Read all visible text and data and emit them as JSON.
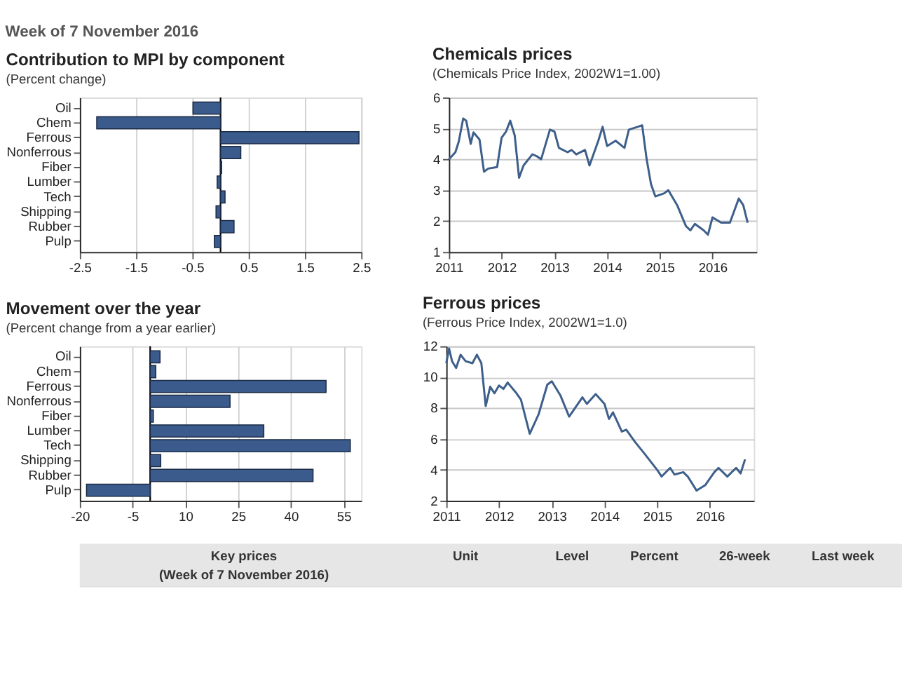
{
  "chart_data": [
    {
      "type": "bar",
      "orientation": "horizontal",
      "title": "Contribution to MPI by component",
      "subtitle": "(Percent change)",
      "categories": [
        "Oil",
        "Chem",
        "Ferrous",
        "Nonferrous",
        "Fiber",
        "Lumber",
        "Tech",
        "Shipping",
        "Rubber",
        "Pulp"
      ],
      "values": [
        -0.49,
        -2.2,
        2.46,
        0.36,
        0.02,
        -0.06,
        0.08,
        -0.08,
        0.24,
        -0.11
      ],
      "color": "#3b5b8c",
      "xlim": [
        -2.5,
        2.5
      ],
      "xticks": [
        -2.5,
        -1.5,
        -0.5,
        0.5,
        1.5,
        2.5
      ],
      "grid": "x",
      "ref_lines": [
        {
          "axis": "x",
          "value": 0,
          "color": "#000000"
        }
      ]
    },
    {
      "type": "line",
      "title": "Chemicals prices",
      "subtitle": "(Chemicals Price Index, 2002W1=1.00)",
      "x": [
        "2011-01",
        "2011-02-15",
        "2011-03-10",
        "2011-04-10",
        "2011-05-01",
        "2011-06-01",
        "2011-06-20",
        "2011-08-01",
        "2011-09-01",
        "2011-10-01",
        "2011-12-01",
        "2012-01-01",
        "2012-02-01",
        "2012-03-01",
        "2012-04-01",
        "2012-05-01",
        "2012-06-01",
        "2012-08-01",
        "2012-09-01",
        "2012-10-01",
        "2012-12-01",
        "2013-01-01",
        "2013-02-01",
        "2013-04-01",
        "2013-05-01",
        "2013-06-01",
        "2013-08-01",
        "2013-09-01",
        "2013-11-01",
        "2013-12-01",
        "2014-01-01",
        "2014-03-01",
        "2014-05-01",
        "2014-06-01",
        "2014-08-01",
        "2014-09-01",
        "2014-10-01",
        "2014-11-01",
        "2014-12-01",
        "2015-02-01",
        "2015-03-01",
        "2015-05-01",
        "2015-07-01",
        "2015-08-01",
        "2015-09-01",
        "2015-11-01",
        "2015-12-01",
        "2016-01-01",
        "2016-03-01",
        "2016-05-01",
        "2016-07-01",
        "2016-08-01",
        "2016-09-01"
      ],
      "values": [
        4.0,
        4.23,
        4.57,
        5.32,
        5.25,
        4.5,
        4.87,
        4.64,
        3.6,
        3.7,
        3.75,
        4.7,
        4.9,
        5.25,
        4.77,
        3.4,
        3.8,
        4.16,
        4.1,
        4.0,
        4.96,
        4.9,
        4.37,
        4.23,
        4.3,
        4.16,
        4.3,
        3.8,
        4.6,
        5.05,
        4.43,
        4.6,
        4.37,
        4.96,
        5.05,
        5.1,
        4.03,
        3.2,
        2.8,
        2.9,
        3.0,
        2.52,
        1.84,
        1.7,
        1.91,
        1.7,
        1.56,
        2.12,
        1.95,
        1.95,
        2.73,
        2.52,
        1.95
      ],
      "color": "#3d5f8a",
      "xlim": [
        "2011-01",
        "2016-11"
      ],
      "xticks": [
        {
          "value": "2011",
          "label": "2011"
        },
        {
          "value": "2012",
          "label": "2012"
        },
        {
          "value": "2013",
          "label": "2013"
        },
        {
          "value": "2014",
          "label": "2014"
        },
        {
          "value": "2015",
          "label": "2015"
        },
        {
          "value": "2016",
          "label": "2016"
        }
      ],
      "ylim": [
        1,
        6
      ],
      "yticks": [
        1,
        2,
        3,
        4,
        5,
        6
      ],
      "grid": "y"
    },
    {
      "type": "bar",
      "orientation": "horizontal",
      "title": "Movement over the year",
      "subtitle": "(Percent change from a year earlier)",
      "categories": [
        "Oil",
        "Chem",
        "Ferrous",
        "Nonferrous",
        "Fiber",
        "Lumber",
        "Tech",
        "Shipping",
        "Rubber",
        "Pulp"
      ],
      "values": [
        2.8,
        1.6,
        50,
        22.7,
        0.9,
        32.3,
        56.9,
        3.0,
        46.3,
        -18.1
      ],
      "color": "#3b5b8c",
      "xlim": [
        -20,
        60
      ],
      "xticks": [
        -20,
        -5,
        10,
        25,
        40,
        55
      ],
      "grid": "x",
      "ref_lines": [
        {
          "axis": "x",
          "value": 0,
          "color": "#000000"
        }
      ]
    },
    {
      "type": "line",
      "title": "Ferrous prices",
      "subtitle": "(Ferrous Price Index, 2002W1=1.0)",
      "x": [
        "2011-01-01",
        "2011-01-20",
        "2011-02-10",
        "2011-03-10",
        "2011-04-10",
        "2011-05-15",
        "2011-07-01",
        "2011-08-01",
        "2011-09-01",
        "2011-10-01",
        "2011-11-01",
        "2011-12-01",
        "2012-01-01",
        "2012-02-01",
        "2012-03-01",
        "2012-05-01",
        "2012-06-01",
        "2012-08-01",
        "2012-10-01",
        "2012-12-01",
        "2013-01-01",
        "2013-03-01",
        "2013-05-01",
        "2013-08-01",
        "2013-09-01",
        "2013-11-01",
        "2014-01-01",
        "2014-02-01",
        "2014-03-01",
        "2014-05-01",
        "2014-06-01",
        "2014-08-01",
        "2014-10-01",
        "2015-01-01",
        "2015-02-01",
        "2015-04-01",
        "2015-05-01",
        "2015-07-01",
        "2015-08-01",
        "2015-10-01",
        "2015-12-01",
        "2016-02-01",
        "2016-03-01",
        "2016-05-01",
        "2016-07-01",
        "2016-08-01",
        "2016-09-01"
      ],
      "values": [
        10.9,
        11.86,
        11.03,
        10.6,
        11.45,
        11.03,
        10.9,
        11.45,
        10.9,
        8.13,
        9.38,
        8.96,
        9.46,
        9.24,
        9.65,
        8.96,
        8.55,
        6.34,
        7.58,
        9.52,
        9.73,
        8.83,
        7.45,
        8.7,
        8.27,
        8.9,
        8.27,
        7.3,
        7.72,
        6.48,
        6.6,
        5.8,
        5.1,
        4.0,
        3.57,
        4.13,
        3.7,
        3.85,
        3.57,
        2.66,
        3.02,
        3.85,
        4.13,
        3.57,
        4.13,
        3.77,
        4.68
      ],
      "color": "#3d5f8a",
      "xlim": [
        "2011-01",
        "2016-11"
      ],
      "xticks": [
        {
          "value": "2011",
          "label": "2011"
        },
        {
          "value": "2012",
          "label": "2012"
        },
        {
          "value": "2013",
          "label": "2013"
        },
        {
          "value": "2014",
          "label": "2014"
        },
        {
          "value": "2015",
          "label": "2015"
        },
        {
          "value": "2016",
          "label": "2016"
        }
      ],
      "ylim": [
        2,
        12
      ],
      "yticks": [
        2,
        4,
        6,
        8,
        10,
        12
      ],
      "grid": "y"
    },
    {
      "type": "other",
      "title": "Week of 7 November 2016",
      "annotations": [
        "Key prices",
        "(Week of 7 November 2016)",
        "Unit",
        "Level",
        "Percent",
        "26-week",
        "Last week"
      ]
    }
  ]
}
